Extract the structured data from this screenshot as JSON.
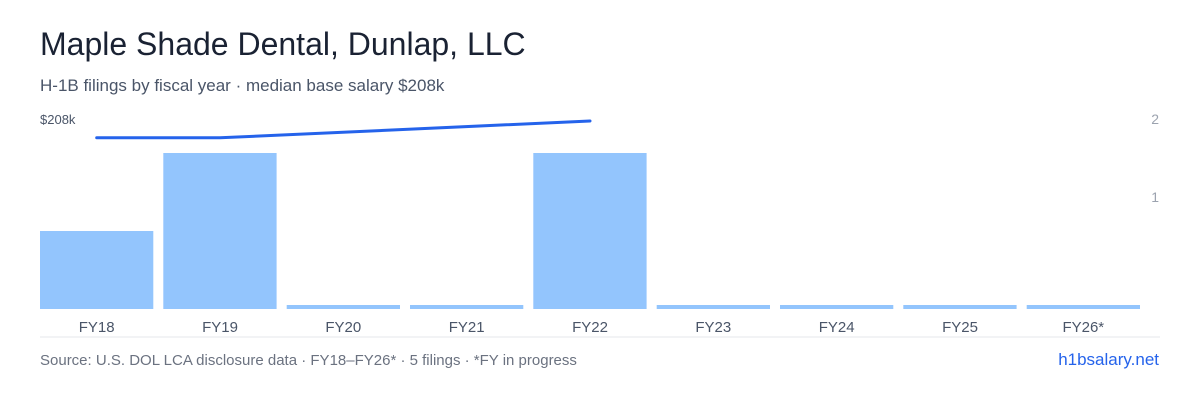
{
  "title": "Maple Shade Dental, Dunlap, LLC",
  "subtitle": "H-1B filings by fiscal year · median base salary $208k",
  "footer": {
    "source": "Source: U.S. DOL LCA disclosure data · FY18–FY26* · 5 filings · *FY in progress",
    "brand": "h1bsalary.net"
  },
  "colors": {
    "bar": "#93c5fd",
    "line": "#2563eb",
    "axis_text": "#9ca3af",
    "tick_text": "#4a5568"
  },
  "chart_data": {
    "type": "bar",
    "categories": [
      "FY18",
      "FY19",
      "FY20",
      "FY21",
      "FY22",
      "FY23",
      "FY24",
      "FY25",
      "FY26*"
    ],
    "series": [
      {
        "values": [
          1,
          2,
          0,
          0,
          2,
          0,
          0,
          0,
          0
        ]
      }
    ],
    "y_right": {
      "ticks": [
        "1",
        "2"
      ],
      "ylim": [
        0,
        2
      ]
    },
    "salary_line": {
      "type": "line",
      "points": [
        {
          "x": "FY18",
          "y": 190000
        },
        {
          "x": "FY19",
          "y": 190000
        },
        {
          "x": "FY22",
          "y": 208000
        }
      ],
      "label": "$208k"
    },
    "grid": false
  }
}
